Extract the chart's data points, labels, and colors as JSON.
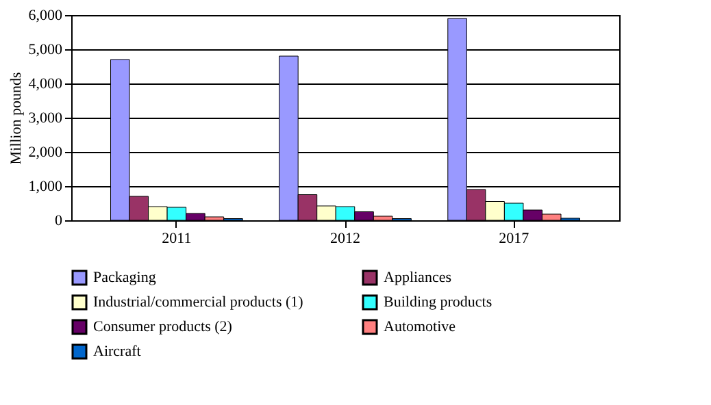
{
  "chart_data": {
    "type": "bar",
    "ylabel": "Million pounds",
    "categories": [
      "2011",
      "2012",
      "2017"
    ],
    "series": [
      {
        "name": "Packaging",
        "color": "#9999ff",
        "values": [
          4700,
          4800,
          5900
        ]
      },
      {
        "name": "Appliances",
        "color": "#993366",
        "values": [
          700,
          750,
          900
        ]
      },
      {
        "name": "Industrial/commercial products (1)",
        "color": "#ffffcc",
        "values": [
          400,
          420,
          550
        ]
      },
      {
        "name": "Building products",
        "color": "#33ffff",
        "values": [
          380,
          400,
          500
        ]
      },
      {
        "name": "Consumer products (2)",
        "color": "#660066",
        "values": [
          200,
          250,
          300
        ]
      },
      {
        "name": "Automotive",
        "color": "#ff8080",
        "values": [
          100,
          120,
          180
        ]
      },
      {
        "name": "Aircraft",
        "color": "#0066cc",
        "values": [
          50,
          50,
          60
        ]
      }
    ],
    "ylim": [
      0,
      6000
    ],
    "yticks": [
      {
        "value": 0,
        "label": "0"
      },
      {
        "value": 1000,
        "label": "1,000"
      },
      {
        "value": 2000,
        "label": "2,000"
      },
      {
        "value": 3000,
        "label": "3,000"
      },
      {
        "value": 4000,
        "label": "4,000"
      },
      {
        "value": 5000,
        "label": "5,000"
      },
      {
        "value": 6000,
        "label": "6,000"
      }
    ],
    "grid": "y",
    "legend": "bottom"
  }
}
